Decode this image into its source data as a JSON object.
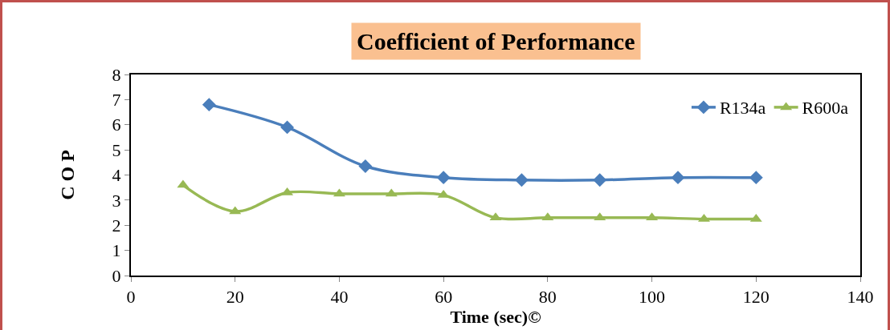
{
  "chart_data": {
    "type": "line",
    "title": "Coefficient of Performance",
    "xlabel": "Time (sec)©",
    "ylabel": "C O P",
    "xlim": [
      0,
      140
    ],
    "xticks": [
      0,
      20,
      40,
      60,
      80,
      100,
      120,
      140
    ],
    "ylim": [
      0,
      8
    ],
    "yticks": [
      0,
      1,
      2,
      3,
      4,
      5,
      6,
      7,
      8
    ],
    "grid": false,
    "legend": "top right",
    "line_style": "solid",
    "series": [
      {
        "name": "R134a",
        "color": "#4a7ebb",
        "marker": "diamond",
        "x": [
          15,
          30,
          45,
          60,
          75,
          90,
          105,
          120
        ],
        "values": [
          6.8,
          5.9,
          4.35,
          3.9,
          3.8,
          3.8,
          3.9,
          3.9
        ]
      },
      {
        "name": "R600a",
        "color": "#98b954",
        "marker": "triangle",
        "x": [
          10,
          20,
          30,
          40,
          50,
          60,
          70,
          80,
          90,
          100,
          110,
          120
        ],
        "values": [
          3.6,
          2.55,
          3.3,
          3.25,
          3.25,
          3.2,
          2.3,
          2.3,
          2.3,
          2.3,
          2.25,
          2.25
        ]
      }
    ]
  }
}
